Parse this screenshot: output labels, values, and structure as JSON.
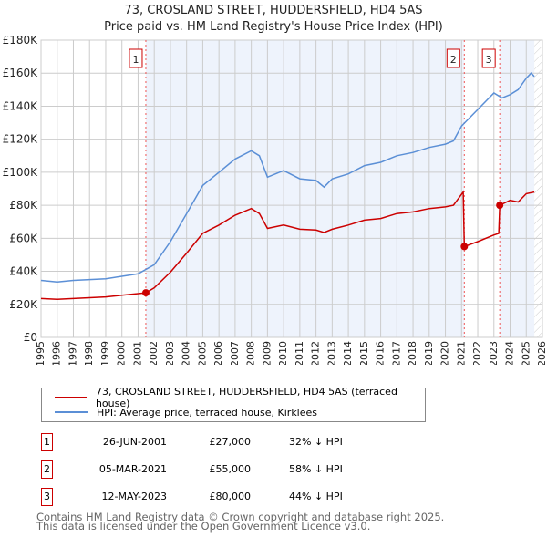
{
  "chart_data": {
    "type": "line",
    "title": "73, CROSLAND STREET, HUDDERSFIELD, HD4 5AS",
    "subtitle": "Price paid vs. HM Land Registry's House Price Index (HPI)",
    "xlim": [
      1995,
      2026
    ],
    "ylim": [
      0,
      180000
    ],
    "x_ticks": [
      "1995",
      "1996",
      "1997",
      "1998",
      "1999",
      "2000",
      "2001",
      "2002",
      "2003",
      "2004",
      "2005",
      "2006",
      "2007",
      "2008",
      "2009",
      "2010",
      "2011",
      "2012",
      "2013",
      "2014",
      "2015",
      "2016",
      "2017",
      "2018",
      "2019",
      "2020",
      "2021",
      "2022",
      "2023",
      "2024",
      "2025",
      "2026"
    ],
    "y_ticks": [
      {
        "v": 0,
        "label": "£0"
      },
      {
        "v": 20000,
        "label": "£20K"
      },
      {
        "v": 40000,
        "label": "£40K"
      },
      {
        "v": 60000,
        "label": "£60K"
      },
      {
        "v": 80000,
        "label": "£80K"
      },
      {
        "v": 100000,
        "label": "£100K"
      },
      {
        "v": 120000,
        "label": "£120K"
      },
      {
        "v": 140000,
        "label": "£140K"
      },
      {
        "v": 160000,
        "label": "£160K"
      },
      {
        "v": 180000,
        "label": "£180K"
      }
    ],
    "grid": true,
    "series": [
      {
        "name": "73, CROSLAND STREET, HUDDERSFIELD, HD4 5AS (terraced house)",
        "color": "#cc0000",
        "x": [
          1995,
          1996,
          1997,
          1998,
          1999,
          2000,
          2001,
          2001.48,
          2002,
          2003,
          2004,
          2005,
          2006,
          2007,
          2008,
          2008.5,
          2009,
          2010,
          2011,
          2012,
          2012.5,
          2013,
          2014,
          2015,
          2016,
          2017,
          2018,
          2019,
          2020,
          2020.5,
          2021.1,
          2021.17,
          2022,
          2023,
          2023.3,
          2023.36,
          2024,
          2024.5,
          2025,
          2025.5
        ],
        "y": [
          23500,
          23000,
          23500,
          24000,
          24500,
          25500,
          26500,
          27000,
          30000,
          39500,
          51000,
          63000,
          68000,
          74000,
          78000,
          75000,
          66000,
          68000,
          65500,
          65000,
          63500,
          65500,
          68000,
          71000,
          72000,
          75000,
          76000,
          78000,
          79000,
          80000,
          88000,
          55000,
          58000,
          62000,
          63000,
          80000,
          83000,
          82000,
          87000,
          88000
        ]
      },
      {
        "name": "HPI: Average price, terraced house, Kirklees",
        "color": "#5b8fd6",
        "x": [
          1995,
          1996,
          1997,
          1998,
          1999,
          2000,
          2001,
          2002,
          2003,
          2004,
          2005,
          2006,
          2007,
          2008,
          2008.5,
          2009,
          2010,
          2011,
          2012,
          2012.5,
          2013,
          2014,
          2015,
          2016,
          2017,
          2018,
          2019,
          2020,
          2020.5,
          2021,
          2022,
          2023,
          2023.5,
          2024,
          2024.5,
          2025,
          2025.3,
          2025.5
        ],
        "y": [
          34500,
          33500,
          34500,
          35000,
          35500,
          37000,
          38500,
          44000,
          58000,
          75000,
          92000,
          100000,
          108000,
          113000,
          110000,
          97000,
          101000,
          96000,
          95000,
          91000,
          96000,
          99000,
          104000,
          106000,
          110000,
          112000,
          115000,
          117000,
          119000,
          128000,
          138000,
          148000,
          145000,
          147000,
          150000,
          157000,
          160000,
          158000
        ]
      }
    ],
    "sales": [
      {
        "label": "1",
        "x": 2001.48,
        "price": 27000,
        "date": "26-JUN-2001",
        "price_text": "£27,000",
        "pct": "32% ↓ HPI"
      },
      {
        "label": "2",
        "x": 2021.17,
        "price": 55000,
        "date": "05-MAR-2021",
        "price_text": "£55,000",
        "pct": "58% ↓ HPI"
      },
      {
        "label": "3",
        "x": 2023.36,
        "price": 80000,
        "date": "12-MAY-2023",
        "price_text": "£80,000",
        "pct": "44% ↓ HPI"
      }
    ],
    "legend_placement": "below"
  },
  "footer": {
    "line1": "Contains HM Land Registry data © Crown copyright and database right 2025.",
    "line2": "This data is licensed under the Open Government Licence v3.0."
  }
}
